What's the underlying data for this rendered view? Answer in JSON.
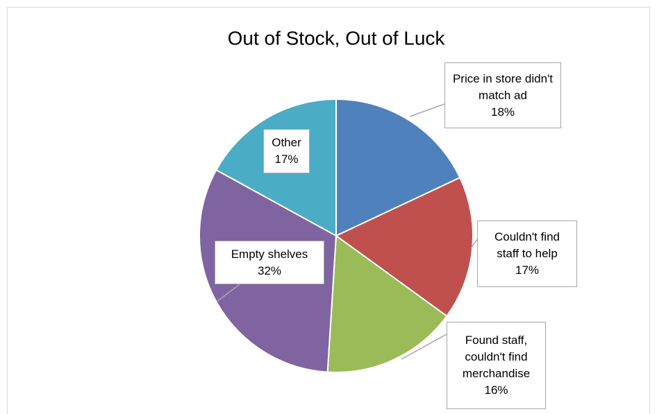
{
  "chart_data": {
    "type": "pie",
    "title": "Out of Stock, Out of Luck",
    "categories": [
      "Price in store didn't match ad",
      "Couldn't find staff to help",
      "Found staff, couldn't find merchandise",
      "Empty shelves",
      "Other"
    ],
    "values": [
      18,
      17,
      16,
      32,
      17
    ],
    "value_labels": [
      "18%",
      "17%",
      "16%",
      "32%",
      "17%"
    ],
    "colors": [
      "#4f81bd",
      "#c0504d",
      "#9bbb59",
      "#8064a2",
      "#4bacc6"
    ]
  }
}
